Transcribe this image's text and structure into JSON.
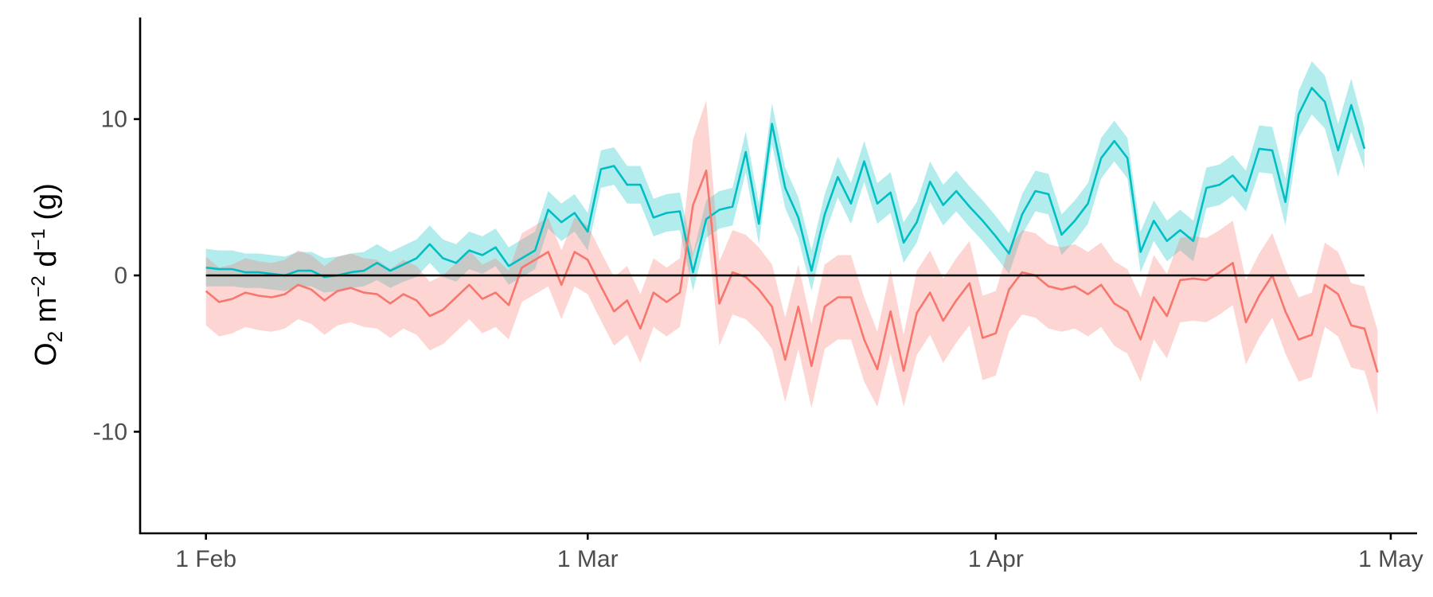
{
  "chart_data": {
    "type": "line",
    "title": "",
    "xlabel": "",
    "ylabel": {
      "o": "O",
      "o_sub": "2",
      "m": " m",
      "m_sup": "−2",
      "d": " d",
      "d_sup": "−1",
      "unit": " (g)"
    },
    "ylim": [
      -16.5,
      16.5
    ],
    "xlim": [
      "2020-01-27",
      "2020-05-03"
    ],
    "y_ticks": [
      {
        "value": -10,
        "label": "-10"
      },
      {
        "value": 0,
        "label": "0"
      },
      {
        "value": 10,
        "label": "10"
      }
    ],
    "x_ticks": [
      {
        "value": "2020-02-01",
        "label": "1 Feb"
      },
      {
        "value": "2020-03-01",
        "label": "1 Mar"
      },
      {
        "value": "2020-04-01",
        "label": "1 Apr"
      },
      {
        "value": "2020-05-01",
        "label": "1 May"
      }
    ],
    "grid": false,
    "legend": "none",
    "reference_line": {
      "y": 0,
      "color": "#000000"
    },
    "x_start": "2020-02-01",
    "series": [
      {
        "color": "#00BFC4",
        "band_color": "#00BFC4",
        "values": [
          0.5,
          0.4,
          0.4,
          0.2,
          0.2,
          0.1,
          0,
          0.3,
          0.3,
          -0.1,
          0,
          0.2,
          0.3,
          0.8,
          0.3,
          0.7,
          1.1,
          2,
          1.1,
          0.8,
          1.6,
          1.3,
          1.8,
          0.6,
          1.1,
          1.6,
          4.2,
          3.4,
          4,
          2.8,
          6.8,
          7,
          5.8,
          5.8,
          3.7,
          4,
          4.1,
          0.2,
          3.6,
          4.2,
          4.4,
          7.9,
          3.3,
          9.7,
          5.6,
          3.7,
          0.3,
          3.9,
          6.3,
          4.6,
          7.3,
          4.6,
          5.3,
          2.1,
          3.4,
          6,
          4.5,
          5.4,
          4.4,
          3.5,
          2.5,
          1.4,
          3.9,
          5.4,
          5.2,
          2.6,
          3.5,
          4.6,
          7.5,
          8.6,
          7.5,
          1.5,
          3.5,
          2.2,
          2.9,
          2.2,
          5.6,
          5.8,
          6.4,
          5.4,
          8.1,
          8,
          4.7,
          10.3,
          12,
          11.1,
          8,
          10.9,
          8.1
        ],
        "lower": [
          -0.7,
          -0.7,
          -0.7,
          -0.8,
          -0.8,
          -0.9,
          -1,
          -0.7,
          -0.7,
          -1.1,
          -1,
          -0.8,
          -0.7,
          -0.3,
          -0.8,
          -0.4,
          -0.1,
          0.8,
          -0.1,
          -0.4,
          0.4,
          0.1,
          0.6,
          -0.6,
          -0.1,
          0.4,
          3,
          2.2,
          2.8,
          1.6,
          5.6,
          5.8,
          4.6,
          4.6,
          2.5,
          2.8,
          2.9,
          -1,
          2.4,
          3,
          3.2,
          6.6,
          2,
          8.4,
          4.3,
          2.4,
          -1,
          2.6,
          5,
          3.3,
          6,
          3.3,
          4,
          0.8,
          2.1,
          4.7,
          3.2,
          4.1,
          3.1,
          2.2,
          1.2,
          0.1,
          2.6,
          4.1,
          3.9,
          1.3,
          2.2,
          3.3,
          6.2,
          7.3,
          6.2,
          0.2,
          2.2,
          0.9,
          1.6,
          0.9,
          4.3,
          4.5,
          5.1,
          4.1,
          6.6,
          6.5,
          3.2,
          8.8,
          10.3,
          9.4,
          6.3,
          9.2,
          6.8
        ],
        "upper": [
          1.7,
          1.6,
          1.6,
          1.4,
          1.4,
          1.3,
          1.2,
          1.5,
          1.5,
          1.1,
          1.2,
          1.4,
          1.5,
          2,
          1.5,
          1.9,
          2.3,
          3.2,
          2.3,
          2,
          2.8,
          2.5,
          3,
          1.8,
          2.3,
          2.8,
          5.4,
          4.6,
          5.2,
          4,
          8,
          8.2,
          7,
          7,
          4.9,
          5.2,
          5.3,
          1.4,
          4.8,
          5.4,
          5.6,
          9.2,
          4.6,
          11,
          6.9,
          5,
          1.6,
          5.2,
          7.6,
          5.9,
          8.6,
          5.9,
          6.6,
          3.4,
          4.7,
          7.3,
          5.8,
          6.7,
          5.7,
          4.8,
          3.8,
          2.7,
          5.2,
          6.7,
          6.5,
          3.9,
          4.8,
          5.9,
          8.8,
          9.9,
          8.8,
          2.8,
          4.8,
          3.5,
          4.2,
          3.5,
          6.9,
          7.1,
          7.7,
          6.7,
          9.6,
          9.5,
          6.2,
          11.8,
          13.7,
          12.8,
          9.7,
          12.6,
          9.4
        ]
      },
      {
        "color": "#F8766D",
        "band_color": "#F8766D",
        "values": [
          -1,
          -1.7,
          -1.5,
          -1.1,
          -1.3,
          -1.4,
          -1.2,
          -0.6,
          -0.9,
          -1.6,
          -1,
          -0.8,
          -1.1,
          -1.2,
          -1.8,
          -1.2,
          -1.6,
          -2.6,
          -2.2,
          -1.4,
          -0.6,
          -1.5,
          -1.1,
          -1.9,
          0.5,
          1,
          1.5,
          -0.6,
          1.5,
          1,
          -0.7,
          -2.3,
          -1.6,
          -3.4,
          -1.1,
          -1.7,
          -1.1,
          4.5,
          6.7,
          -1.8,
          0.2,
          -0.1,
          -0.9,
          -2,
          -5.4,
          -2,
          -5.8,
          -2,
          -1.4,
          -1.4,
          -4.1,
          -6,
          -2.3,
          -6.1,
          -2.4,
          -1.1,
          -2.9,
          -1.6,
          -0.5,
          -4,
          -3.7,
          -0.9,
          0.2,
          0,
          -0.7,
          -0.9,
          -0.7,
          -1.2,
          -0.6,
          -1.8,
          -2.3,
          -4.1,
          -1.4,
          -2.6,
          -0.3,
          -0.2,
          -0.3,
          0.2,
          0.8,
          -3,
          -1.3,
          0,
          -2.3,
          -4.1,
          -3.8,
          -0.6,
          -1.2,
          -3.2,
          -3.4,
          -6.2
        ],
        "lower": [
          -3.2,
          -3.9,
          -3.7,
          -3.3,
          -3.5,
          -3.6,
          -3.4,
          -2.8,
          -3.1,
          -3.8,
          -3.2,
          -3,
          -3.3,
          -3.4,
          -4,
          -3.4,
          -3.8,
          -4.8,
          -4.4,
          -3.6,
          -2.8,
          -3.7,
          -3.3,
          -4.1,
          -1.7,
          -1.2,
          -0.7,
          -2.8,
          -0.7,
          -1.2,
          -2.9,
          -4.5,
          -3.8,
          -5.6,
          -3.3,
          -3.9,
          -3.3,
          1.3,
          3.5,
          -4.5,
          -2.5,
          -2.8,
          -3.6,
          -4.7,
          -8.1,
          -4.7,
          -8.5,
          -4.7,
          -4.1,
          -4.1,
          -6.8,
          -8.4,
          -5,
          -8.4,
          -5.1,
          -3.8,
          -5.6,
          -4.3,
          -3.2,
          -6.7,
          -6.4,
          -3.6,
          -2.5,
          -2.7,
          -3.4,
          -3.6,
          -3.4,
          -3.9,
          -3.3,
          -4.5,
          -5,
          -6.8,
          -4.1,
          -5.3,
          -3,
          -2.9,
          -3,
          -2.5,
          -1.9,
          -5.7,
          -4,
          -2.7,
          -5,
          -6.8,
          -6.5,
          -3.3,
          -3.9,
          -5.9,
          -6.1,
          -8.9
        ],
        "upper": [
          1.2,
          0.5,
          0.7,
          1.1,
          0.9,
          0.8,
          1,
          1.6,
          1.3,
          0.6,
          1.2,
          1.4,
          1.1,
          1,
          0.4,
          1,
          0.6,
          -0.4,
          0,
          0.8,
          1.6,
          0.7,
          1.1,
          0.3,
          2.7,
          3.2,
          3.7,
          1.6,
          3.7,
          3.2,
          1.5,
          -0.1,
          0.6,
          -1.2,
          1.1,
          0.5,
          1.1,
          8.7,
          11.2,
          0.9,
          2.9,
          2.6,
          1.8,
          0.7,
          -2.7,
          0.7,
          -3.1,
          0.7,
          1.3,
          1.3,
          -1.4,
          -3.6,
          0.4,
          -3.8,
          0.3,
          1.6,
          -0.2,
          1.1,
          2.2,
          -1.3,
          -1,
          1.8,
          2.9,
          2.7,
          2,
          1.8,
          2,
          1.5,
          2.1,
          0.9,
          0.4,
          -1.4,
          1.3,
          0.1,
          2.4,
          2.5,
          2.4,
          2.9,
          3.5,
          -0.3,
          1.4,
          2.7,
          0.4,
          -1.4,
          -1.1,
          2.1,
          1.5,
          -0.5,
          -0.7,
          -3.5
        ]
      }
    ]
  }
}
